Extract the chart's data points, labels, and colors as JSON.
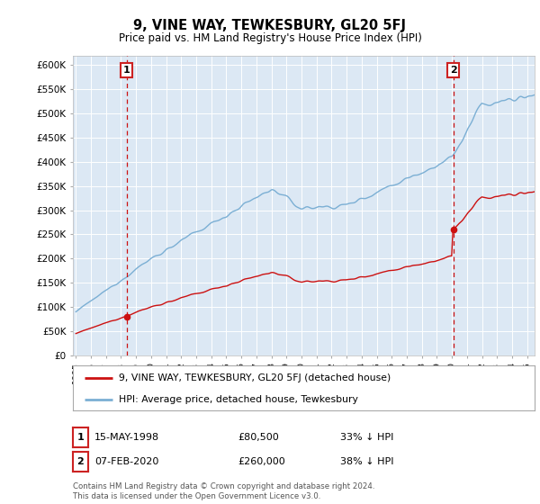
{
  "title": "9, VINE WAY, TEWKESBURY, GL20 5FJ",
  "subtitle": "Price paid vs. HM Land Registry's House Price Index (HPI)",
  "ylim": [
    0,
    620000
  ],
  "xlim_start": 1994.8,
  "xlim_end": 2025.5,
  "hpi_color": "#7bafd4",
  "price_color": "#cc1111",
  "sale1_date": 1998.37,
  "sale1_price": 80500,
  "sale1_label": "1",
  "sale1_text": "15-MAY-1998",
  "sale1_amount": "£80,500",
  "sale1_note": "33% ↓ HPI",
  "sale2_date": 2020.09,
  "sale2_price": 260000,
  "sale2_label": "2",
  "sale2_text": "07-FEB-2020",
  "sale2_amount": "£260,000",
  "sale2_note": "38% ↓ HPI",
  "legend_line1": "9, VINE WAY, TEWKESBURY, GL20 5FJ (detached house)",
  "legend_line2": "HPI: Average price, detached house, Tewkesbury",
  "footer": "Contains HM Land Registry data © Crown copyright and database right 2024.\nThis data is licensed under the Open Government Licence v3.0.",
  "plot_bg_color": "#dce8f4"
}
